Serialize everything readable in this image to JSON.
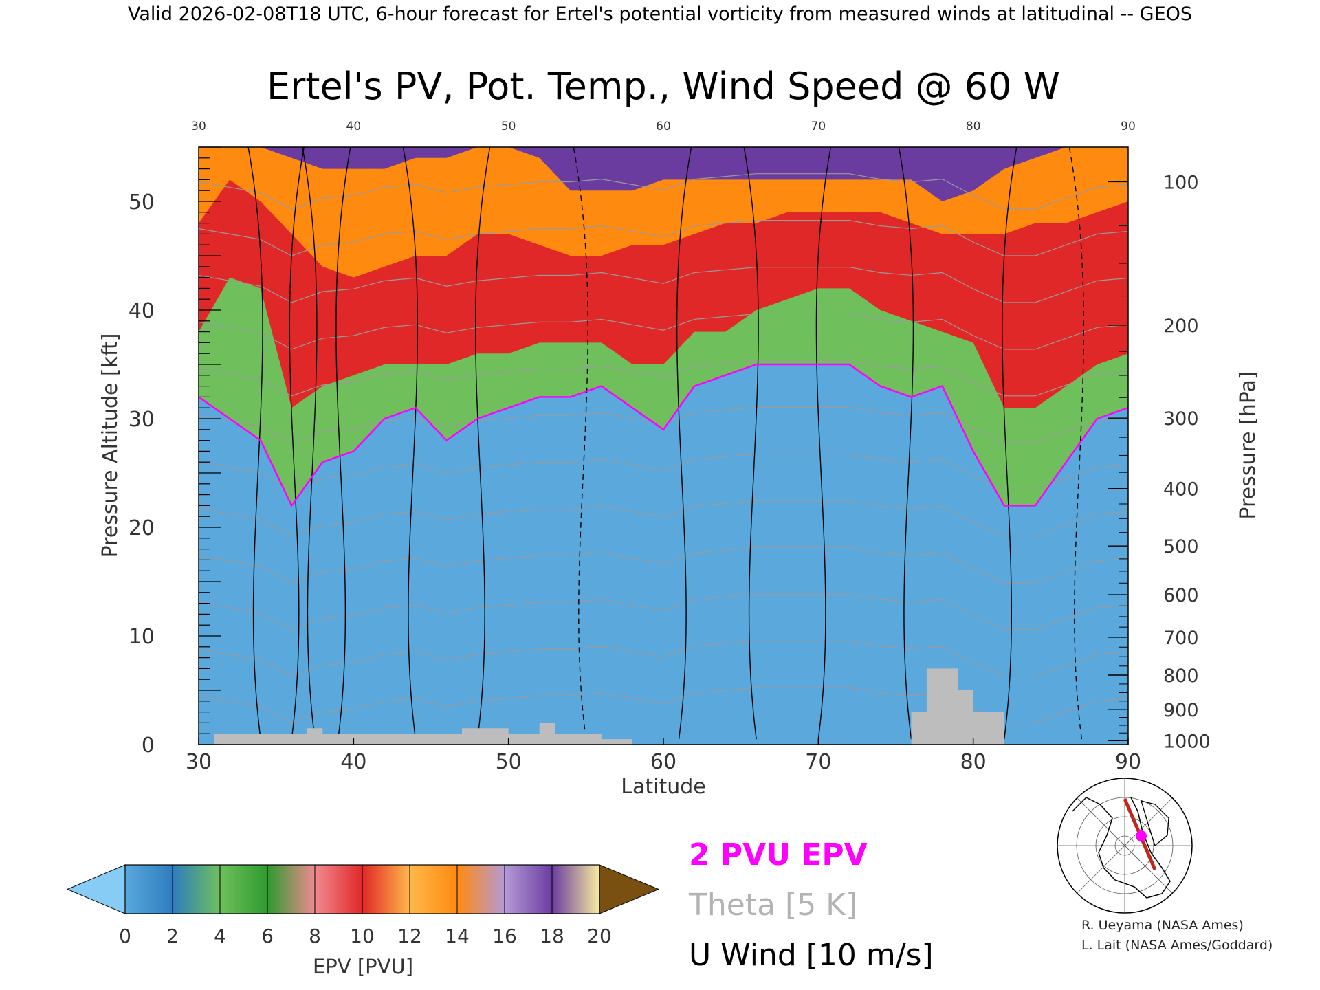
{
  "header": {
    "valid_line": "Valid 2026-02-08T18 UTC, 6-hour forecast for Ertel's potential vorticity from measured winds at latitudinal -- GEOS"
  },
  "chart_data": {
    "type": "heatmap",
    "title": "Ertel's PV, Pot. Temp., Wind Speed @ 60 W",
    "xlabel": "Latitude",
    "ylabel": "Pressure Altitude [kft]",
    "y2label": "Pressure [hPa]",
    "xlim": [
      30,
      90
    ],
    "ylim": [
      0,
      55
    ],
    "x_ticks": [
      "30",
      "40",
      "50",
      "60",
      "70",
      "80",
      "90"
    ],
    "top_x_ticks": [
      "30",
      "40",
      "50",
      "60",
      "70",
      "80",
      "90"
    ],
    "y_ticks": [
      "0",
      "10",
      "20",
      "30",
      "40",
      "50"
    ],
    "pressure_ticks": [
      "100",
      "200",
      "300",
      "400",
      "500",
      "600",
      "700",
      "800",
      "900",
      "1000"
    ],
    "pressure_levels": [
      100,
      200,
      300,
      400,
      500,
      600,
      700,
      800,
      900,
      1000
    ],
    "colorbar": {
      "label": "EPV [PVU]",
      "ticks": [
        "0",
        "2",
        "4",
        "6",
        "8",
        "10",
        "12",
        "14",
        "16",
        "18",
        "20"
      ],
      "colors": [
        "#5aa8dc",
        "#2e7cbf",
        "#6fc05c",
        "#2f9a2f",
        "#f08a90",
        "#e02828",
        "#ffb84a",
        "#ff8a10",
        "#b49ad6",
        "#6a3ca0",
        "#f8eda0"
      ],
      "under_color": "#86ccf4",
      "over_color": "#7a5010"
    },
    "epv_profile": {
      "latitude": [
        30,
        32,
        34,
        36,
        38,
        40,
        42,
        44,
        46,
        48,
        50,
        52,
        54,
        56,
        58,
        60,
        62,
        64,
        66,
        68,
        70,
        72,
        74,
        76,
        78,
        80,
        82,
        84,
        86,
        88,
        90
      ],
      "tropopause_2pvu_kft": [
        32,
        30,
        28,
        22,
        26,
        27,
        30,
        31,
        28,
        30,
        31,
        32,
        32,
        33,
        31,
        29,
        33,
        34,
        35,
        35,
        35,
        35,
        33,
        32,
        33,
        27,
        22,
        22,
        26,
        30,
        31
      ],
      "pv6_kft": [
        38,
        43,
        42,
        31,
        33,
        34,
        35,
        35,
        35,
        36,
        36,
        37,
        37,
        37,
        35,
        35,
        38,
        38,
        40,
        41,
        42,
        42,
        40,
        39,
        38,
        37,
        31,
        31,
        33,
        35,
        36
      ],
      "pv12_kft": [
        48,
        52,
        50,
        47,
        44,
        43,
        44,
        45,
        45,
        47,
        47,
        46,
        45,
        45,
        46,
        46,
        47,
        48,
        48,
        49,
        49,
        49,
        49,
        48,
        47,
        47,
        47,
        48,
        48,
        49,
        50
      ],
      "pv16_kft": [
        55,
        55,
        55,
        54,
        53,
        53,
        53,
        54,
        54,
        55,
        55,
        54,
        51,
        51,
        51,
        52,
        52,
        52,
        52,
        52,
        52,
        52,
        52,
        52,
        50,
        51,
        53,
        54,
        55,
        55,
        55
      ]
    },
    "surface_terrain": {
      "latitude": [
        30,
        31,
        37,
        38,
        46,
        47,
        50,
        52,
        53,
        56,
        58,
        75,
        76,
        77,
        78,
        79,
        80,
        82,
        90
      ],
      "height_kft": [
        0,
        1,
        1.5,
        1,
        1,
        1.5,
        1,
        2,
        1,
        0.5,
        0,
        0,
        3,
        7,
        7,
        5,
        3,
        0,
        0
      ]
    },
    "u_wind_contours": [
      {
        "value": "-10",
        "dashed": true
      },
      {
        "value": "0",
        "dashed": false
      },
      {
        "value": "10",
        "dashed": false
      },
      {
        "value": "20",
        "dashed": false
      },
      {
        "value": "30",
        "dashed": false
      },
      {
        "value": "40",
        "dashed": false
      },
      {
        "value": "50",
        "dashed": false
      }
    ],
    "theta_contours_k": [
      300,
      310,
      320,
      330,
      340,
      350,
      360,
      370,
      380,
      390,
      400,
      410
    ]
  },
  "legend": {
    "pv_line": "2 PVU EPV",
    "theta": "Theta [5 K]",
    "u_wind": "U Wind [10 m/s]",
    "colors": {
      "pv": "#ff00ff",
      "theta": "#b3b3b3",
      "u_wind": "#000000"
    }
  },
  "credits": {
    "line1": "R. Ueyama (NASA Ames)",
    "line2": "L. Lait (NASA Ames/Goddard)"
  },
  "inset_map": {
    "marker_color": "#ff00ff",
    "section_color": "#c0281e"
  }
}
